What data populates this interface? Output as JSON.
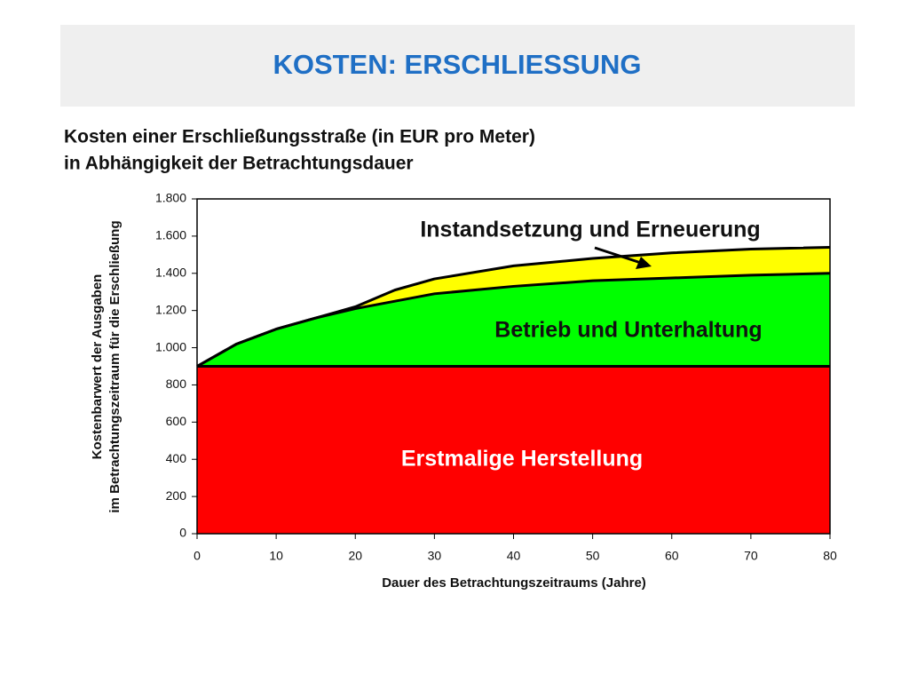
{
  "chart_data": {
    "type": "stacked_area",
    "title": "KOSTEN: ERSCHLIESSUNG",
    "subtitle": [
      "Kosten einer Erschließungsstraße (in EUR pro Meter)",
      "in Abhängigkeit der Betrachtungsdauer"
    ],
    "ylabel": [
      "Kostenbarwert der Ausgaben",
      "im Betrachtungszeitraum für die Erschließung"
    ],
    "xlabel": "Dauer des Betrachtungszeitraums (Jahre)",
    "x": [
      0,
      5,
      10,
      15,
      20,
      25,
      30,
      40,
      50,
      60,
      70,
      80
    ],
    "series": [
      {
        "name": "Erstmalige Herstellung",
        "color": "#ff0000",
        "values": [
          900,
          900,
          900,
          900,
          900,
          900,
          900,
          900,
          900,
          900,
          900,
          900
        ]
      },
      {
        "name": "Betrieb und Unterhaltung",
        "color": "#00ff00",
        "values": [
          0,
          120,
          200,
          260,
          310,
          350,
          390,
          430,
          460,
          475,
          490,
          500
        ]
      },
      {
        "name": "Instandsetzung und Erneuerung",
        "color": "#ffff00",
        "values": [
          0,
          0,
          0,
          0,
          10,
          60,
          80,
          110,
          120,
          135,
          140,
          140
        ]
      }
    ],
    "xlim": [
      0,
      80
    ],
    "xticks": [
      0,
      10,
      20,
      30,
      40,
      50,
      60,
      70,
      80
    ],
    "ylim": [
      0,
      1800
    ],
    "yticks": [
      0,
      200,
      400,
      600,
      800,
      {
        "value": 1000,
        "label": "1.000"
      },
      {
        "value": 1200,
        "label": "1.200"
      },
      {
        "value": 1400,
        "label": "1.400"
      },
      {
        "value": 1600,
        "label": "1.600"
      },
      {
        "value": 1800,
        "label": "1.800"
      }
    ],
    "grid": false
  }
}
